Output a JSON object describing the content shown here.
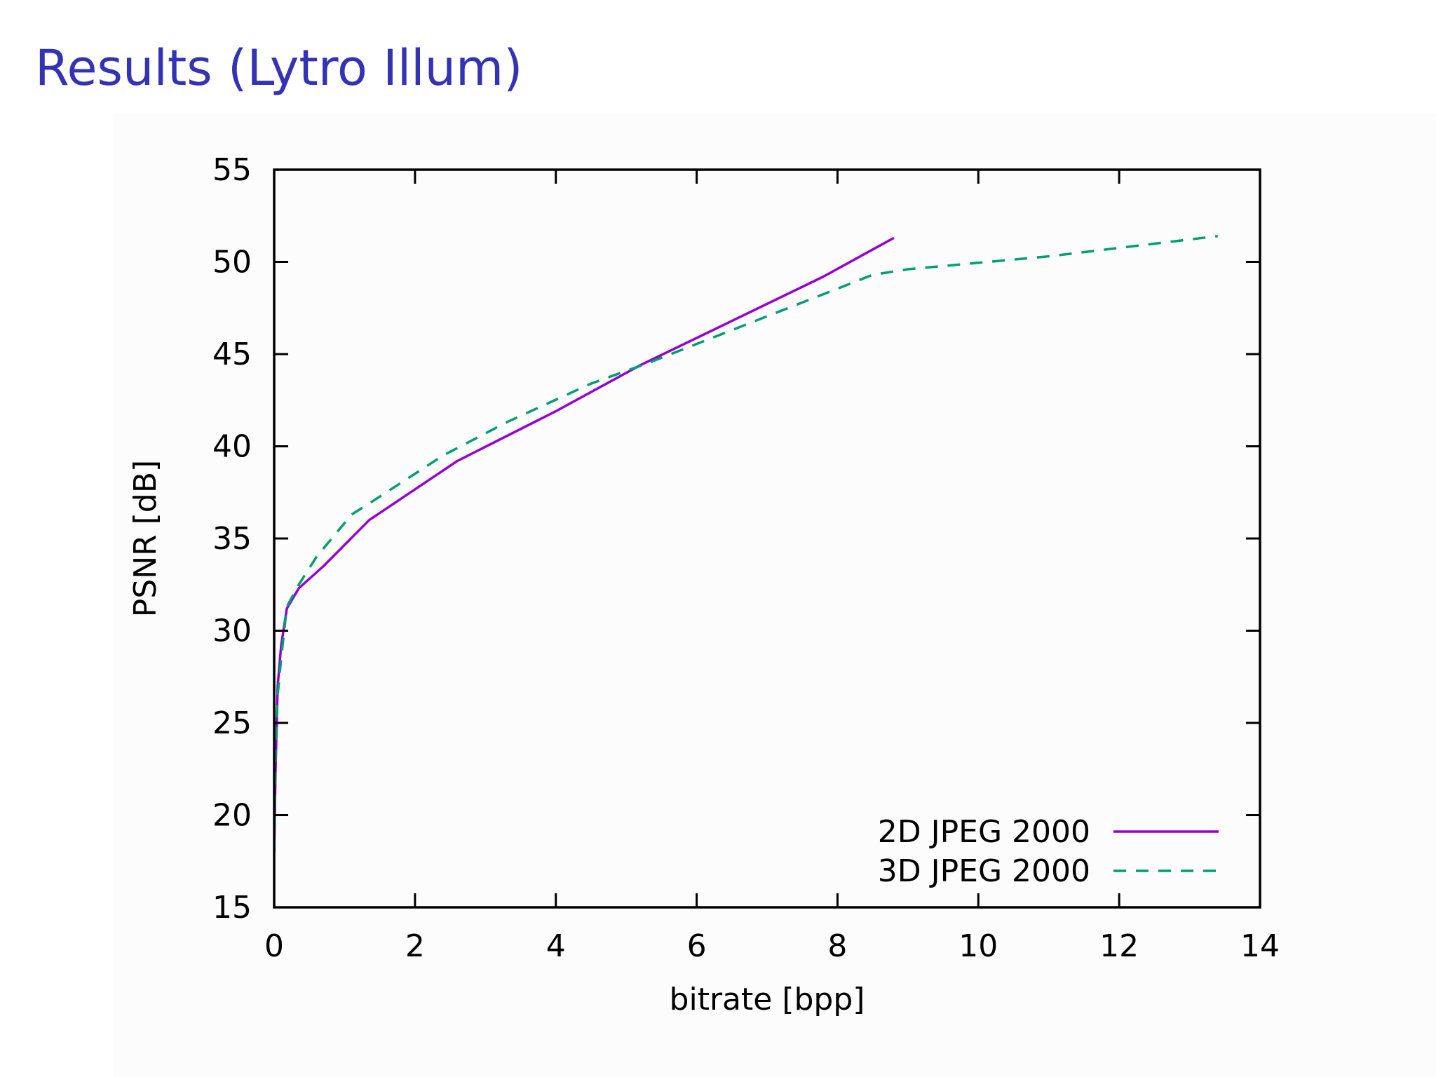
{
  "slide": {
    "title": "Results (Lytro Illum)",
    "title_color": "#3333b3"
  },
  "chart_data": {
    "type": "line",
    "title": "",
    "xlabel": "bitrate [bpp]",
    "ylabel": "PSNR [dB]",
    "xlim": [
      0,
      14
    ],
    "ylim": [
      15,
      55
    ],
    "xticks": [
      0,
      2,
      4,
      6,
      8,
      10,
      12,
      14
    ],
    "yticks": [
      15,
      20,
      25,
      30,
      35,
      40,
      45,
      50,
      55
    ],
    "grid": false,
    "legend_position": "bottom-right",
    "series": [
      {
        "name": "2D JPEG 2000",
        "color": "#9400d3",
        "style": "solid",
        "x": [
          0,
          0.02,
          0.05,
          0.1,
          0.18,
          0.35,
          0.7,
          1.35,
          2.6,
          4.0,
          5.2,
          6.5,
          7.8,
          8.8
        ],
        "y": [
          18,
          22.5,
          27,
          29.2,
          31.2,
          32.3,
          33.5,
          36.0,
          39.2,
          41.9,
          44.4,
          46.8,
          49.2,
          51.3
        ]
      },
      {
        "name": "3D JPEG 2000",
        "color": "#009e73",
        "style": "dashed",
        "x": [
          0,
          0.02,
          0.05,
          0.1,
          0.18,
          0.35,
          0.6,
          1.1,
          1.35,
          2.4,
          3.3,
          4.5,
          5.3,
          6.3,
          7.5,
          8.5,
          9.0,
          11.0,
          13.4
        ],
        "y": [
          18,
          23.5,
          26.5,
          28.5,
          31.3,
          32.5,
          34,
          36.3,
          36.9,
          39.5,
          41.3,
          43.4,
          44.5,
          46.0,
          47.8,
          49.3,
          49.6,
          50.3,
          51.4
        ]
      }
    ]
  }
}
